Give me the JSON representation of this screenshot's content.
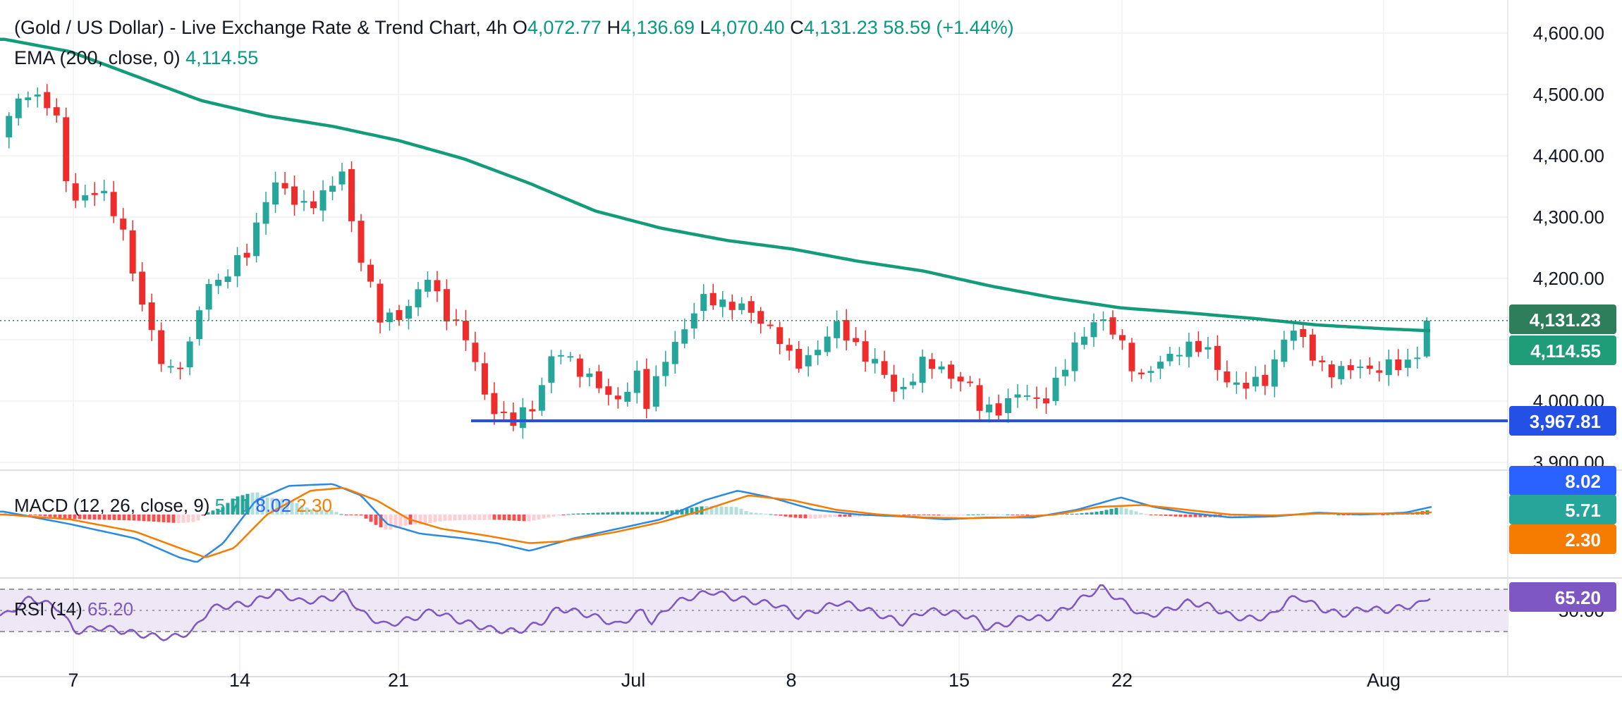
{
  "header": {
    "title": "(Gold / US Dollar) - Live Exchange Rate & Trend Chart, 4h",
    "open_label": "O",
    "open": "4,072.77",
    "high_label": "H",
    "high": "4,136.69",
    "low_label": "L",
    "low": "4,070.40",
    "close_label": "C",
    "close": "4,131.23",
    "change": "58.59 (+1.44%)"
  },
  "ema_legend": {
    "label": "EMA (200, close, 0)",
    "value": "4,114.55"
  },
  "macd_legend": {
    "label": "MACD (12, 26, close, 9)",
    "hist": "5.71",
    "macd": "8.02",
    "signal": "2.30"
  },
  "rsi_legend": {
    "label": "RSI (14)",
    "value": "65.20"
  },
  "price_tags": {
    "last": "4,131.23",
    "ema": "4,114.55",
    "support": "3,967.81",
    "macd": "8.02",
    "hist": "5.71",
    "signal": "2.30",
    "rsi": "65.20",
    "rsi_axis": "50.00"
  },
  "colors": {
    "up": "#26a69a",
    "down": "#ef2c2c",
    "ema": "#149c7a",
    "support": "#2450e6",
    "macd_line": "#2b8ae0",
    "signal_line": "#f57c00",
    "rsi_line": "#7e57c2",
    "rsi_band": "#ede7f6",
    "last_tag": "#2e7d5b",
    "ema_tag": "#1f9d79",
    "support_tag": "#2450e6",
    "macd_tag": "#2962ff",
    "hist_tag": "#26a69a",
    "signal_tag": "#f57c00",
    "rsi_tag": "#7e57c2"
  },
  "chart_data": {
    "type": "candlestick",
    "timeframe": "4h",
    "x_ticks": [
      "7",
      "14",
      "21",
      "Jul",
      "8",
      "15",
      "22",
      "Aug"
    ],
    "y_ticks": [
      "4,600.00",
      "4,500.00",
      "4,400.00",
      "4,300.00",
      "4,200.00",
      "4,000.00",
      "3,900.00"
    ],
    "ylim": [
      3880,
      4630
    ],
    "support_level": 3967.81,
    "last_close": 4131.23,
    "ema_last": 4114.55,
    "price_path": [
      [
        0,
        4430
      ],
      [
        1.2,
        4510
      ],
      [
        2.5,
        4475
      ],
      [
        3.2,
        4330
      ],
      [
        4.5,
        4340
      ],
      [
        5.5,
        4300
      ],
      [
        6.6,
        4140
      ],
      [
        7.6,
        4050
      ],
      [
        8.6,
        4070
      ],
      [
        9.4,
        4190
      ],
      [
        10.5,
        4210
      ],
      [
        11.3,
        4240
      ],
      [
        12.4,
        4360
      ],
      [
        13.6,
        4320
      ],
      [
        15.0,
        4335
      ],
      [
        15.6,
        4380
      ],
      [
        16.3,
        4260
      ],
      [
        17.4,
        4130
      ],
      [
        18.6,
        4150
      ],
      [
        19.6,
        4200
      ],
      [
        20.5,
        4140
      ],
      [
        21.2,
        4110
      ],
      [
        22.3,
        4000
      ],
      [
        23.4,
        3960
      ],
      [
        24.5,
        4000
      ],
      [
        25.3,
        4080
      ],
      [
        26.3,
        4060
      ],
      [
        27.3,
        4030
      ],
      [
        28.0,
        3990
      ],
      [
        29.2,
        4050
      ],
      [
        29.6,
        3985
      ],
      [
        30.5,
        4080
      ],
      [
        31.3,
        4120
      ],
      [
        32.3,
        4170
      ],
      [
        33.3,
        4160
      ],
      [
        34.4,
        4140
      ],
      [
        35.4,
        4120
      ],
      [
        36.3,
        4050
      ],
      [
        37.1,
        4080
      ],
      [
        38.2,
        4120
      ],
      [
        39.2,
        4090
      ],
      [
        40.0,
        4060
      ],
      [
        41.0,
        4010
      ],
      [
        42.1,
        4060
      ],
      [
        43.2,
        4050
      ],
      [
        44.2,
        4030
      ],
      [
        44.8,
        3985
      ],
      [
        45.6,
        3990
      ],
      [
        46.6,
        4010
      ],
      [
        47.6,
        4000
      ],
      [
        48.5,
        4040
      ],
      [
        49.3,
        4100
      ],
      [
        50.1,
        4140
      ],
      [
        51.1,
        4100
      ],
      [
        52.1,
        4040
      ],
      [
        53.1,
        4060
      ],
      [
        54.1,
        4095
      ],
      [
        55.1,
        4080
      ],
      [
        56.1,
        4035
      ],
      [
        57.1,
        4020
      ],
      [
        58.0,
        4040
      ],
      [
        58.6,
        4105
      ],
      [
        59.3,
        4110
      ],
      [
        60.1,
        4070
      ],
      [
        61.1,
        4040
      ],
      [
        62.1,
        4060
      ],
      [
        63.1,
        4050
      ],
      [
        64.1,
        4060
      ],
      [
        64.7,
        4072.77
      ],
      [
        65.2,
        4131.23
      ]
    ],
    "ema_path": [
      [
        0,
        4590
      ],
      [
        3,
        4570
      ],
      [
        6,
        4530
      ],
      [
        9,
        4490
      ],
      [
        12,
        4465
      ],
      [
        15,
        4448
      ],
      [
        18,
        4425
      ],
      [
        21,
        4395
      ],
      [
        24,
        4355
      ],
      [
        27,
        4310
      ],
      [
        30,
        4282
      ],
      [
        33,
        4262
      ],
      [
        36,
        4248
      ],
      [
        39,
        4228
      ],
      [
        42,
        4212
      ],
      [
        45,
        4188
      ],
      [
        48,
        4168
      ],
      [
        51,
        4152
      ],
      [
        54,
        4144
      ],
      [
        57,
        4135
      ],
      [
        60,
        4124
      ],
      [
        63,
        4118
      ],
      [
        65.2,
        4114.55
      ]
    ],
    "macd": {
      "legend": [
        "MACD (12, 26, close, 9)",
        "5.71",
        "8.02",
        "2.30"
      ],
      "macd_line": [
        [
          0,
          3
        ],
        [
          3,
          -10
        ],
        [
          6,
          -25
        ],
        [
          8,
          -45
        ],
        [
          8.8,
          -50
        ],
        [
          10,
          -30
        ],
        [
          11.5,
          15
        ],
        [
          13,
          30
        ],
        [
          15,
          32
        ],
        [
          16.3,
          20
        ],
        [
          17.5,
          -10
        ],
        [
          19,
          -20
        ],
        [
          21,
          -25
        ],
        [
          22.5,
          -30
        ],
        [
          24,
          -38
        ],
        [
          26,
          -25
        ],
        [
          28,
          -15
        ],
        [
          30,
          -5
        ],
        [
          32,
          15
        ],
        [
          33.5,
          25
        ],
        [
          35,
          18
        ],
        [
          37,
          5
        ],
        [
          39,
          0
        ],
        [
          41,
          -2
        ],
        [
          43,
          -5
        ],
        [
          45,
          -3
        ],
        [
          47,
          -3
        ],
        [
          49,
          5
        ],
        [
          51,
          18
        ],
        [
          52.5,
          8
        ],
        [
          54,
          2
        ],
        [
          56,
          -3
        ],
        [
          58,
          -2
        ],
        [
          60,
          2
        ],
        [
          62,
          0
        ],
        [
          64,
          2
        ],
        [
          65.2,
          8.02
        ]
      ],
      "signal_line": [
        [
          0,
          0
        ],
        [
          3,
          -5
        ],
        [
          6,
          -18
        ],
        [
          8,
          -35
        ],
        [
          9.2,
          -45
        ],
        [
          10.5,
          -35
        ],
        [
          12,
          0
        ],
        [
          14,
          25
        ],
        [
          15.5,
          28
        ],
        [
          17,
          15
        ],
        [
          18.5,
          -5
        ],
        [
          20,
          -15
        ],
        [
          22,
          -22
        ],
        [
          24,
          -30
        ],
        [
          25.5,
          -28
        ],
        [
          28,
          -18
        ],
        [
          30,
          -8
        ],
        [
          32,
          5
        ],
        [
          34,
          20
        ],
        [
          36,
          15
        ],
        [
          38,
          5
        ],
        [
          40,
          0
        ],
        [
          42,
          -3
        ],
        [
          44,
          -4
        ],
        [
          46,
          -3
        ],
        [
          48,
          0
        ],
        [
          50,
          8
        ],
        [
          52,
          10
        ],
        [
          54,
          5
        ],
        [
          56,
          0
        ],
        [
          58,
          -1
        ],
        [
          60,
          1
        ],
        [
          62,
          1
        ],
        [
          64,
          1
        ],
        [
          65.2,
          2.3
        ]
      ],
      "histogram_scale_note": "",
      "ylim": [
        -55,
        45
      ]
    },
    "rsi": {
      "legend": [
        "RSI (14)",
        "65.20"
      ],
      "upper": 70,
      "lower": 30,
      "mid": 50,
      "ylim": [
        15,
        85
      ],
      "values": [
        [
          0,
          45
        ],
        [
          1.2,
          62
        ],
        [
          2.5,
          52
        ],
        [
          3.2,
          30
        ],
        [
          4.5,
          34
        ],
        [
          5.5,
          30
        ],
        [
          6.6,
          26
        ],
        [
          7.6,
          24
        ],
        [
          8.6,
          30
        ],
        [
          9.4,
          52
        ],
        [
          10.5,
          55
        ],
        [
          11.3,
          57
        ],
        [
          12.4,
          68
        ],
        [
          13.6,
          58
        ],
        [
          15.0,
          62
        ],
        [
          15.6,
          66
        ],
        [
          16.3,
          48
        ],
        [
          17.4,
          36
        ],
        [
          18.6,
          42
        ],
        [
          19.6,
          50
        ],
        [
          20.5,
          42
        ],
        [
          21.2,
          38
        ],
        [
          22.3,
          32
        ],
        [
          23.4,
          30
        ],
        [
          24.5,
          38
        ],
        [
          25.3,
          52
        ],
        [
          26.3,
          48
        ],
        [
          27.3,
          42
        ],
        [
          28.0,
          36
        ],
        [
          29.2,
          50
        ],
        [
          29.6,
          38
        ],
        [
          30.5,
          56
        ],
        [
          31.3,
          62
        ],
        [
          32.3,
          68
        ],
        [
          33.3,
          62
        ],
        [
          34.4,
          58
        ],
        [
          35.4,
          55
        ],
        [
          36.3,
          44
        ],
        [
          37.1,
          50
        ],
        [
          38.2,
          58
        ],
        [
          39.2,
          52
        ],
        [
          40.0,
          46
        ],
        [
          41.0,
          38
        ],
        [
          42.1,
          50
        ],
        [
          43.2,
          48
        ],
        [
          44.2,
          44
        ],
        [
          44.8,
          34
        ],
        [
          45.6,
          36
        ],
        [
          46.6,
          44
        ],
        [
          47.6,
          42
        ],
        [
          48.5,
          52
        ],
        [
          49.3,
          62
        ],
        [
          50.1,
          72
        ],
        [
          51.1,
          58
        ],
        [
          52.1,
          44
        ],
        [
          53.1,
          50
        ],
        [
          54.1,
          58
        ],
        [
          55.1,
          54
        ],
        [
          56.1,
          44
        ],
        [
          57.1,
          42
        ],
        [
          58.0,
          46
        ],
        [
          58.6,
          60
        ],
        [
          59.3,
          62
        ],
        [
          60.1,
          52
        ],
        [
          61.1,
          46
        ],
        [
          62.1,
          52
        ],
        [
          63.1,
          50
        ],
        [
          64.1,
          54
        ],
        [
          64.7,
          56
        ],
        [
          65.2,
          65.2
        ]
      ]
    },
    "x_range": [
      0,
      66
    ]
  }
}
